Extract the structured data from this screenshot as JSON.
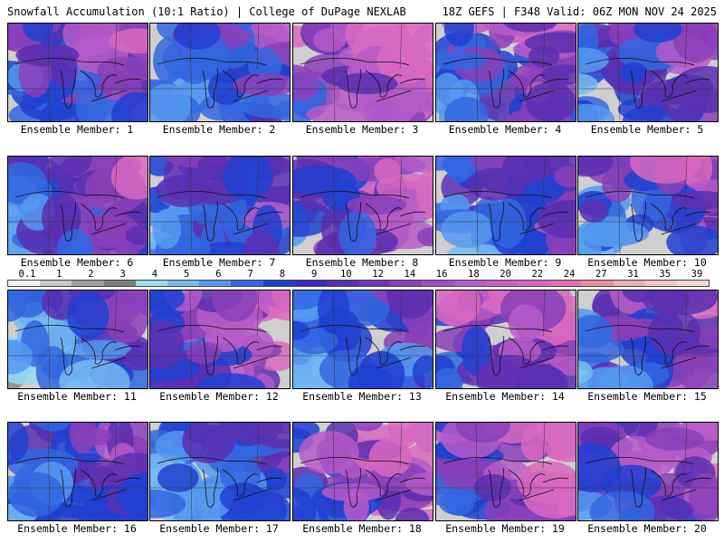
{
  "header": {
    "title_left": "Snowfall Accumulation (10:1 Ratio) | College of DuPage NEXLAB",
    "title_right": "18Z GEFS | F348 Valid: 06Z MON NOV 24 2025"
  },
  "members": [
    {
      "label": "Ensemble Member: 1",
      "intensity": 0.62
    },
    {
      "label": "Ensemble Member: 2",
      "intensity": 0.45
    },
    {
      "label": "Ensemble Member: 3",
      "intensity": 0.85
    },
    {
      "label": "Ensemble Member: 4",
      "intensity": 0.6
    },
    {
      "label": "Ensemble Member: 5",
      "intensity": 0.55
    },
    {
      "label": "Ensemble Member: 6",
      "intensity": 0.55
    },
    {
      "label": "Ensemble Member: 7",
      "intensity": 0.48
    },
    {
      "label": "Ensemble Member: 8",
      "intensity": 0.72
    },
    {
      "label": "Ensemble Member: 9",
      "intensity": 0.52
    },
    {
      "label": "Ensemble Member: 10",
      "intensity": 0.58
    },
    {
      "label": "Ensemble Member: 11",
      "intensity": 0.35
    },
    {
      "label": "Ensemble Member: 12",
      "intensity": 0.7
    },
    {
      "label": "Ensemble Member: 13",
      "intensity": 0.4
    },
    {
      "label": "Ensemble Member: 14",
      "intensity": 0.8
    },
    {
      "label": "Ensemble Member: 15",
      "intensity": 0.62
    },
    {
      "label": "Ensemble Member: 16",
      "intensity": 0.55
    },
    {
      "label": "Ensemble Member: 17",
      "intensity": 0.38
    },
    {
      "label": "Ensemble Member: 18",
      "intensity": 0.78
    },
    {
      "label": "Ensemble Member: 19",
      "intensity": 0.75
    },
    {
      "label": "Ensemble Member: 20",
      "intensity": 0.7
    }
  ],
  "colorbar": {
    "labels": [
      "0.1",
      "1",
      "2",
      "3",
      "4",
      "5",
      "6",
      "7",
      "8",
      "9",
      "10",
      "12",
      "14",
      "16",
      "18",
      "20",
      "22",
      "24",
      "27",
      "31",
      "35",
      "39"
    ],
    "colors": [
      "#f0f0f0",
      "#c8c8c8",
      "#a0a0a0",
      "#7e7e7e",
      "#99ddee",
      "#77bbf2",
      "#5599ee",
      "#3366e0",
      "#2040d0",
      "#3b2ab8",
      "#5a2fb0",
      "#7236b0",
      "#8a40b8",
      "#a050c0",
      "#b65ac8",
      "#c860c8",
      "#d868c0",
      "#e070b0",
      "#e890a0",
      "#eeb0b0",
      "#f2c8c0",
      "#f6dcd0"
    ]
  }
}
